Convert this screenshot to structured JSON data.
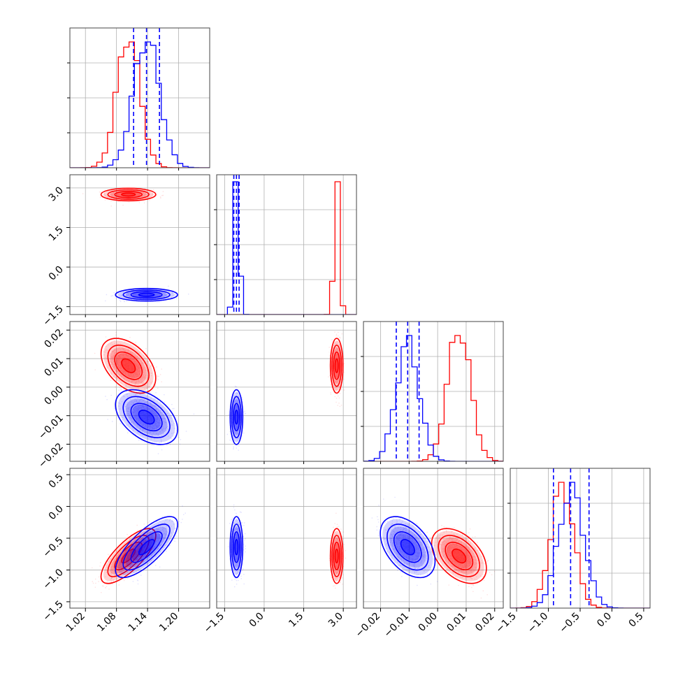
{
  "chart_data": {
    "type": "corner",
    "colors": {
      "red": "#ff0000",
      "blue": "#0000ff",
      "grid": "#b0b0b0"
    },
    "params": [
      {
        "range": [
          0.99,
          1.26
        ],
        "ticks": [
          "1.02",
          "1.08",
          "1.14",
          "1.20"
        ],
        "tick_values": [
          1.02,
          1.08,
          1.14,
          1.2
        ]
      },
      {
        "range": [
          -1.8,
          3.5
        ],
        "ticks": [
          "−1.5",
          "0.0",
          "1.5",
          "3.0"
        ],
        "tick_values": [
          -1.5,
          0.0,
          1.5,
          3.0
        ]
      },
      {
        "range": [
          -0.026,
          0.023
        ],
        "ticks": [
          "−0.02",
          "−0.01",
          "0.00",
          "0.01",
          "0.02"
        ],
        "tick_values": [
          -0.02,
          -0.01,
          0.0,
          0.01,
          0.02
        ]
      },
      {
        "range": [
          -1.6,
          0.6
        ],
        "ticks": [
          "−1.5",
          "−1.0",
          "−0.5",
          "0.0",
          "0.5"
        ],
        "tick_values": [
          -1.5,
          -1.0,
          -0.5,
          0.0,
          0.5
        ]
      }
    ],
    "series": [
      {
        "name": "",
        "color": "#ff0000",
        "mean": [
          1.103,
          2.75,
          0.0075,
          -0.78
        ],
        "std": [
          0.022,
          0.1,
          0.004,
          0.18
        ]
      },
      {
        "name": "",
        "color": "#0000ff",
        "mean": [
          1.138,
          -1.05,
          -0.0105,
          -0.64
        ],
        "std": [
          0.025,
          0.1,
          0.004,
          0.2
        ]
      }
    ],
    "quantile_lines": [
      [
        1.113,
        1.138,
        1.163
      ],
      [
        -1.15,
        -1.05,
        -0.95
      ],
      [
        -0.0145,
        -0.0105,
        -0.0065
      ],
      [
        -0.92,
        -0.65,
        -0.36
      ]
    ],
    "correlations": {
      "0-3": 0.75,
      "0-2": -0.45,
      "2-3": -0.45
    }
  }
}
